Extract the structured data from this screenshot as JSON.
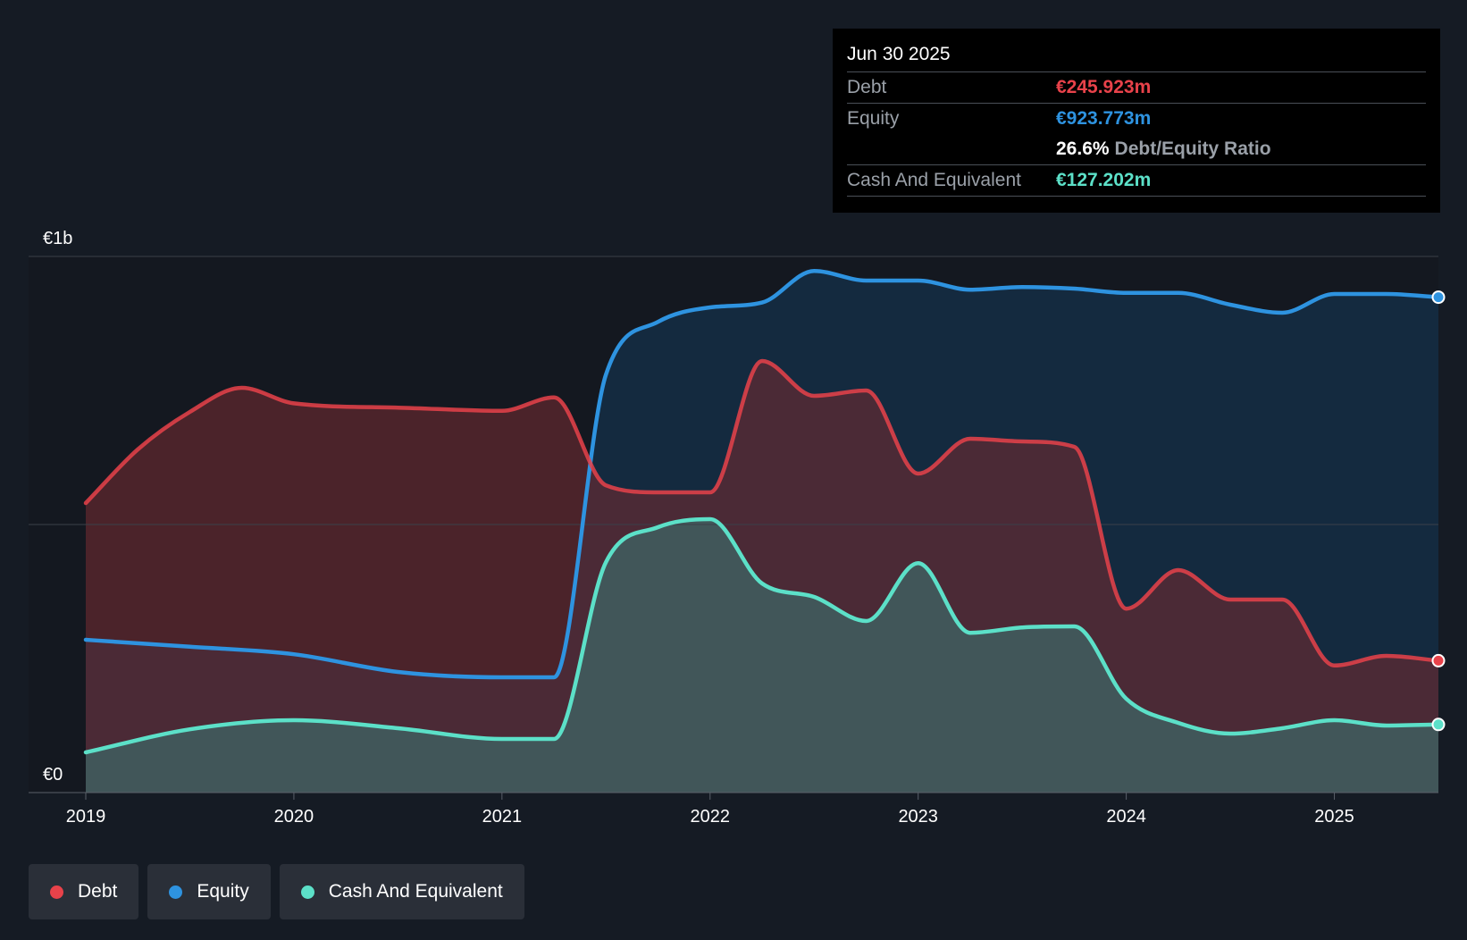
{
  "chart_data": {
    "type": "area",
    "x_ticks": [
      "2019",
      "2020",
      "2021",
      "2022",
      "2023",
      "2024",
      "2025"
    ],
    "xlim": [
      2019.0,
      2025.5
    ],
    "ylim": [
      0,
      1000
    ],
    "y_unit": "€m",
    "y_tick_labels": [
      {
        "value": 1000,
        "label": "€1b"
      },
      {
        "value": 0,
        "label": "€0"
      }
    ],
    "gridlines": [
      1000,
      500,
      0
    ],
    "series": [
      {
        "name": "Debt",
        "color": "#e8424a",
        "fill": "#6e2a31",
        "points": [
          [
            2019.0,
            540
          ],
          [
            2019.25,
            640
          ],
          [
            2019.5,
            710
          ],
          [
            2019.75,
            755
          ],
          [
            2020.0,
            726
          ],
          [
            2020.5,
            718
          ],
          [
            2021.0,
            712
          ],
          [
            2021.25,
            737
          ],
          [
            2021.5,
            573
          ],
          [
            2021.75,
            560
          ],
          [
            2022.0,
            560
          ],
          [
            2022.25,
            805
          ],
          [
            2022.5,
            740
          ],
          [
            2022.75,
            750
          ],
          [
            2023.0,
            595
          ],
          [
            2023.25,
            660
          ],
          [
            2023.5,
            655
          ],
          [
            2023.75,
            645
          ],
          [
            2024.0,
            343
          ],
          [
            2024.25,
            415
          ],
          [
            2024.5,
            360
          ],
          [
            2024.75,
            360
          ],
          [
            2025.0,
            237
          ],
          [
            2025.25,
            255
          ],
          [
            2025.5,
            246
          ]
        ]
      },
      {
        "name": "Equity",
        "color": "#2e93e0",
        "fill": "#153553",
        "points": [
          [
            2019.0,
            285
          ],
          [
            2019.5,
            272
          ],
          [
            2020.0,
            258
          ],
          [
            2020.5,
            225
          ],
          [
            2021.0,
            215
          ],
          [
            2021.25,
            215
          ],
          [
            2021.5,
            780
          ],
          [
            2021.75,
            878
          ],
          [
            2022.0,
            905
          ],
          [
            2022.25,
            914
          ],
          [
            2022.5,
            973
          ],
          [
            2022.75,
            955
          ],
          [
            2023.0,
            955
          ],
          [
            2023.25,
            938
          ],
          [
            2023.5,
            943
          ],
          [
            2023.75,
            940
          ],
          [
            2024.0,
            932
          ],
          [
            2024.25,
            932
          ],
          [
            2024.5,
            910
          ],
          [
            2024.75,
            895
          ],
          [
            2025.0,
            930
          ],
          [
            2025.25,
            930
          ],
          [
            2025.5,
            924
          ]
        ]
      },
      {
        "name": "Cash And Equivalent",
        "color": "#5ce0c8",
        "fill": "#3d6566",
        "points": [
          [
            2019.0,
            75
          ],
          [
            2019.5,
            118
          ],
          [
            2020.0,
            135
          ],
          [
            2020.5,
            120
          ],
          [
            2021.0,
            100
          ],
          [
            2021.25,
            100
          ],
          [
            2021.5,
            430
          ],
          [
            2021.75,
            495
          ],
          [
            2022.0,
            510
          ],
          [
            2022.25,
            390
          ],
          [
            2022.5,
            365
          ],
          [
            2022.75,
            320
          ],
          [
            2023.0,
            428
          ],
          [
            2023.25,
            298
          ],
          [
            2023.5,
            308
          ],
          [
            2023.75,
            310
          ],
          [
            2024.0,
            175
          ],
          [
            2024.25,
            130
          ],
          [
            2024.5,
            110
          ],
          [
            2024.75,
            120
          ],
          [
            2025.0,
            135
          ],
          [
            2025.25,
            125
          ],
          [
            2025.5,
            127
          ]
        ]
      }
    ]
  },
  "tooltip": {
    "date": "Jun 30 2025",
    "rows": [
      {
        "label": "Debt",
        "value": "€245.923m",
        "color": "#e8424a"
      },
      {
        "label": "Equity",
        "value": "€923.773m",
        "color": "#2e93e0"
      }
    ],
    "ratio_pct": "26.6%",
    "ratio_label": "Debt/Equity Ratio",
    "cash": {
      "label": "Cash And Equivalent",
      "value": "€127.202m",
      "color": "#5ce0c8"
    }
  },
  "legend": [
    {
      "label": "Debt",
      "color": "#e8424a"
    },
    {
      "label": "Equity",
      "color": "#2e93e0"
    },
    {
      "label": "Cash And Equivalent",
      "color": "#5ce0c8"
    }
  ]
}
